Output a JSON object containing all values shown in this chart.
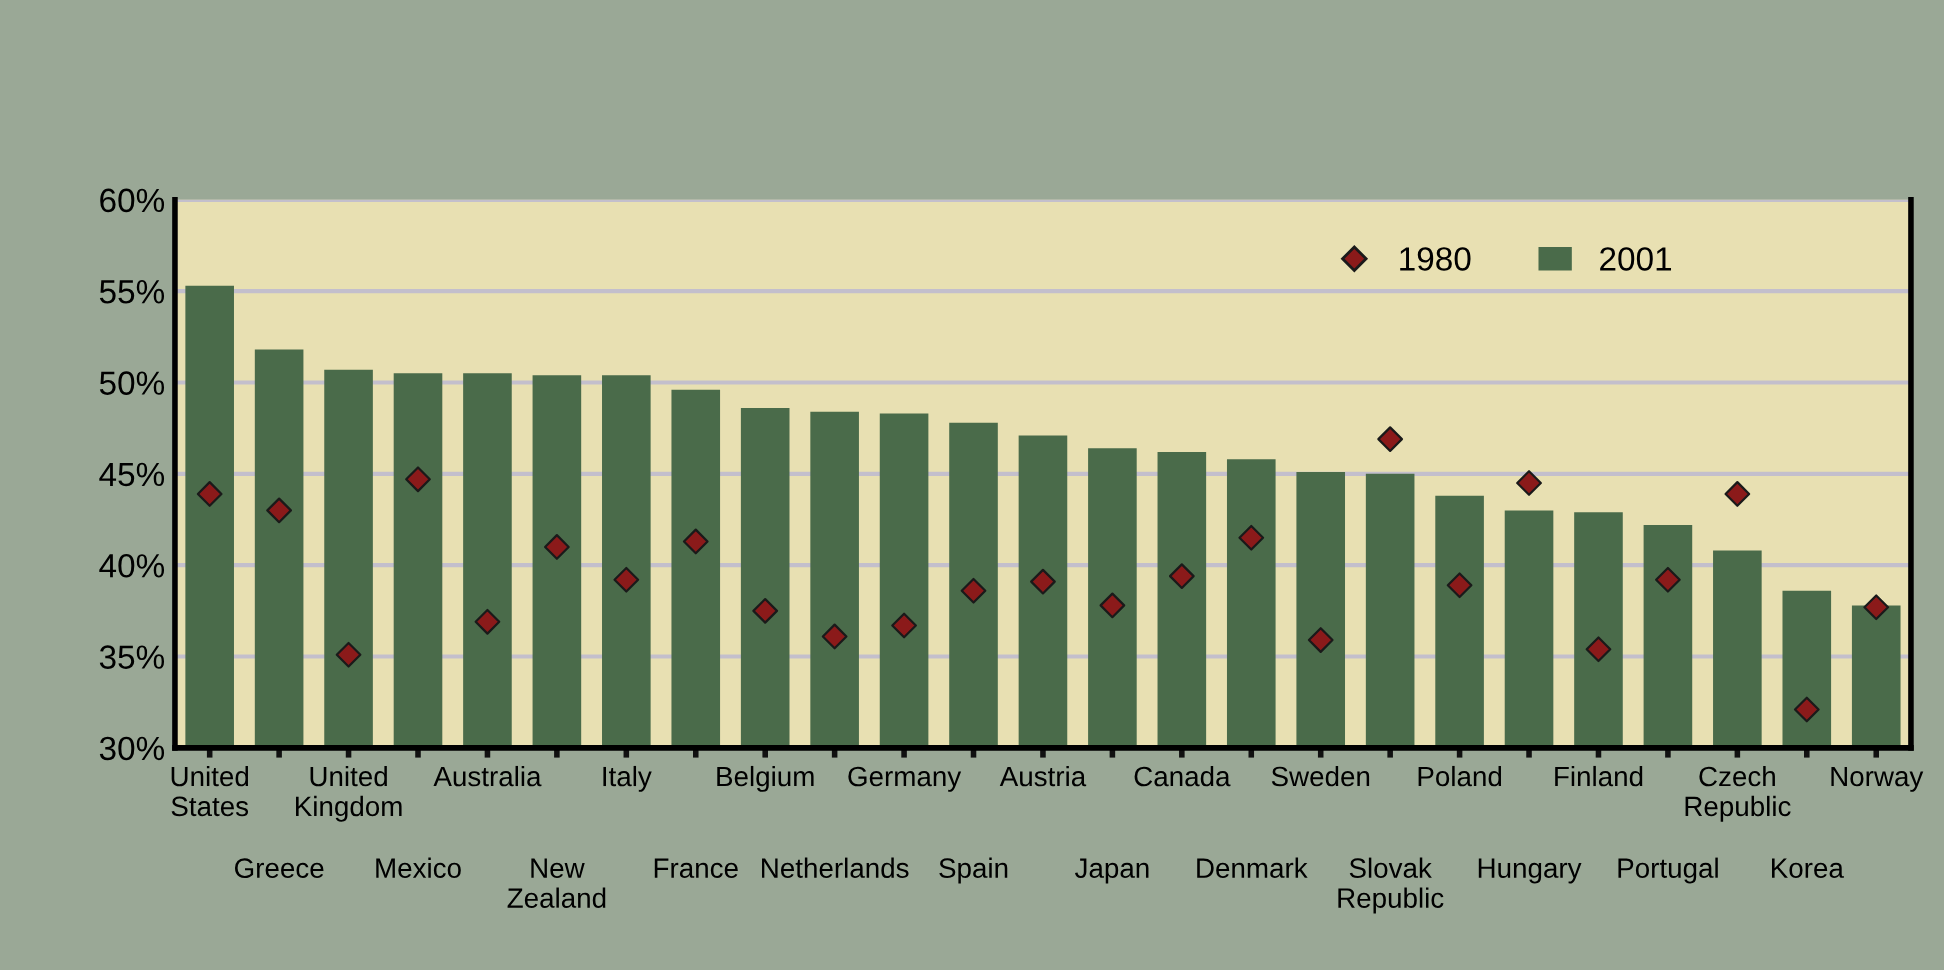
{
  "chart_data": {
    "type": "bar",
    "categories": [
      "United\nStates",
      "Greece",
      "United\nKingdom",
      "Mexico",
      "Australia",
      "New\nZealand",
      "Italy",
      "France",
      "Belgium",
      "Netherlands",
      "Germany",
      "Spain",
      "Austria",
      "Japan",
      "Canada",
      "Denmark",
      "Sweden",
      "Slovak\nRepublic",
      "Poland",
      "Hungary",
      "Finland",
      "Portugal",
      "Czech\nRepublic",
      "Korea",
      "Norway"
    ],
    "series": [
      {
        "name": "1980",
        "type": "scatter",
        "color": "#8b1a1a",
        "marker": "diamond",
        "values": [
          43.9,
          43.0,
          35.1,
          44.7,
          36.9,
          41.0,
          39.2,
          41.3,
          37.5,
          36.1,
          36.7,
          38.6,
          39.1,
          37.8,
          39.4,
          41.5,
          35.9,
          46.9,
          38.9,
          44.5,
          35.4,
          39.2,
          43.9,
          32.1,
          37.7
        ]
      },
      {
        "name": "2001",
        "color": "#4a6b4a",
        "values": [
          55.3,
          51.8,
          50.7,
          50.5,
          50.5,
          50.4,
          50.4,
          49.6,
          48.6,
          48.4,
          48.3,
          47.8,
          47.1,
          46.4,
          46.2,
          45.8,
          45.1,
          45.0,
          43.8,
          43.0,
          42.9,
          42.2,
          40.8,
          38.6,
          37.8
        ]
      }
    ],
    "ylim": [
      30,
      60
    ],
    "yticks": [
      {
        "value": 30,
        "label": "30%"
      },
      {
        "value": 35,
        "label": "35%"
      },
      {
        "value": 40,
        "label": "40%"
      },
      {
        "value": 45,
        "label": "45%"
      },
      {
        "value": 50,
        "label": "50%"
      },
      {
        "value": 55,
        "label": "55%"
      },
      {
        "value": 60,
        "label": "60%"
      }
    ],
    "grid": "y",
    "legend": "top right"
  }
}
